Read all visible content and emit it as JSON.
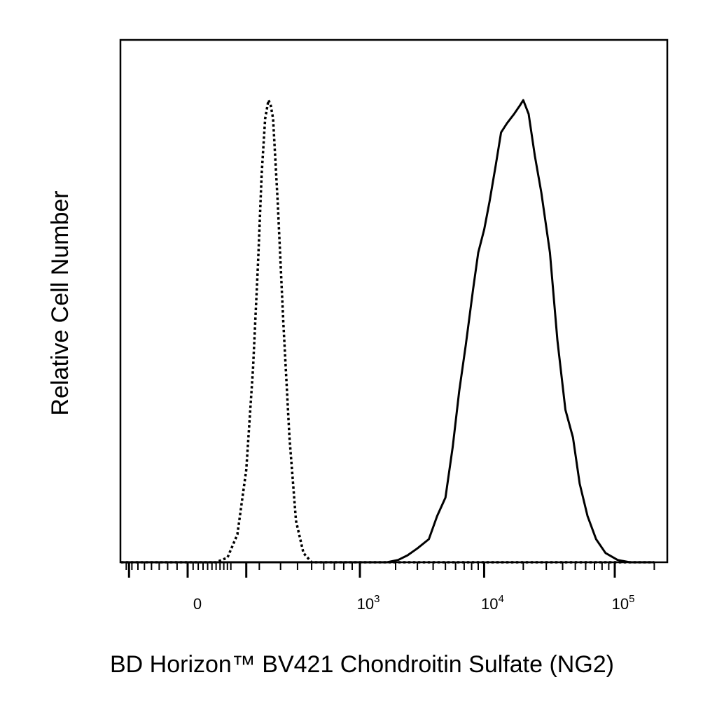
{
  "chart_data": {
    "type": "line",
    "title": "",
    "xlabel": "BD Horizon™ BV421 Chondroitin Sulfate (NG2)",
    "ylabel": "Relative Cell Number",
    "x_scale": "biexponential",
    "xlim": [
      -180,
      200000
    ],
    "ylim": [
      0,
      1
    ],
    "grid": false,
    "legend": "none",
    "x_ticks": [
      {
        "value": 0,
        "label": "0",
        "sup": ""
      },
      {
        "value": 1000,
        "label": "10",
        "sup": "3"
      },
      {
        "value": 10000,
        "label": "10",
        "sup": "4"
      },
      {
        "value": 100000,
        "label": "10",
        "sup": "5"
      }
    ],
    "series": [
      {
        "style": "dotted",
        "color": "#000000",
        "points": [
          [
            -180,
            0
          ],
          [
            60,
            0
          ],
          [
            90,
            0.01
          ],
          [
            120,
            0.06
          ],
          [
            150,
            0.2
          ],
          [
            175,
            0.42
          ],
          [
            195,
            0.65
          ],
          [
            210,
            0.84
          ],
          [
            225,
            0.96
          ],
          [
            240,
            1.0
          ],
          [
            250,
            0.99
          ],
          [
            262,
            0.96
          ],
          [
            285,
            0.78
          ],
          [
            315,
            0.52
          ],
          [
            350,
            0.27
          ],
          [
            390,
            0.09
          ],
          [
            440,
            0.02
          ],
          [
            500,
            0.0
          ],
          [
            1000,
            0
          ],
          [
            200000,
            0
          ]
        ]
      },
      {
        "style": "solid",
        "color": "#000000",
        "points": [
          [
            -180,
            0
          ],
          [
            1700,
            0
          ],
          [
            2100,
            0.005
          ],
          [
            2500,
            0.015
          ],
          [
            3000,
            0.03
          ],
          [
            3700,
            0.05
          ],
          [
            4300,
            0.1
          ],
          [
            5000,
            0.14
          ],
          [
            5700,
            0.25
          ],
          [
            6400,
            0.37
          ],
          [
            7200,
            0.47
          ],
          [
            8200,
            0.59
          ],
          [
            9000,
            0.67
          ],
          [
            10000,
            0.72
          ],
          [
            11000,
            0.78
          ],
          [
            12300,
            0.86
          ],
          [
            13500,
            0.93
          ],
          [
            15000,
            0.95
          ],
          [
            17000,
            0.97
          ],
          [
            19000,
            0.99
          ],
          [
            20000,
            1.0
          ],
          [
            22000,
            0.97
          ],
          [
            24500,
            0.88
          ],
          [
            27500,
            0.8
          ],
          [
            32000,
            0.67
          ],
          [
            36500,
            0.48
          ],
          [
            42000,
            0.33
          ],
          [
            48000,
            0.27
          ],
          [
            54000,
            0.17
          ],
          [
            62000,
            0.1
          ],
          [
            72000,
            0.05
          ],
          [
            85000,
            0.02
          ],
          [
            105000,
            0.005
          ],
          [
            130000,
            0
          ],
          [
            200000,
            0
          ]
        ]
      }
    ]
  }
}
